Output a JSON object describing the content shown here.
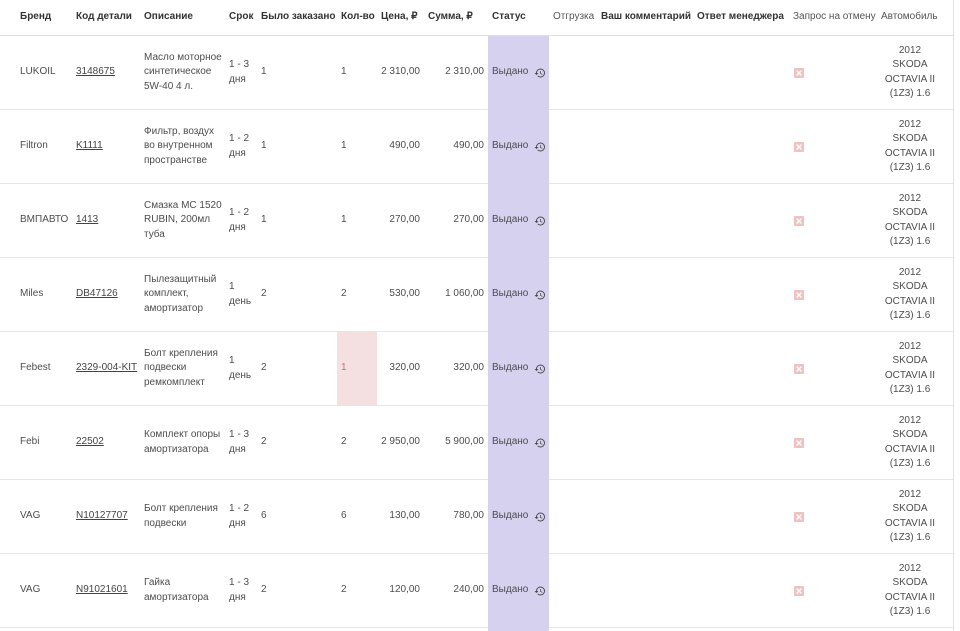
{
  "columns": {
    "brand": "Бренд",
    "part_code": "Код детали",
    "description": "Описание",
    "term": "Срок",
    "ordered": "Было заказано",
    "quantity": "Кол-во",
    "price": "Цена, ₽",
    "sum": "Сумма, ₽",
    "status": "Статус",
    "shipment": "Отгрузка",
    "your_comment": "Ваш комментарий",
    "manager_reply": "Ответ менеджера",
    "cancel_request": "Запрос на отмену",
    "car": "Автомобиль"
  },
  "rows": [
    {
      "brand": "LUKOIL",
      "code": "3148675",
      "description": "Масло моторное синтетическое 5W-40 4 л.",
      "term": "1 - 3 дня",
      "ordered": "1",
      "qty": "1",
      "price": "2 310,00",
      "sum": "2 310,00",
      "status": "Выдано",
      "car": "2012 SKODA OCTAVIA II (1Z3) 1.6"
    },
    {
      "brand": "Filtron",
      "code": "K1111",
      "description": "Фильтр, воздух во внутренном пространстве",
      "term": "1 - 2 дня",
      "ordered": "1",
      "qty": "1",
      "price": "490,00",
      "sum": "490,00",
      "status": "Выдано",
      "car": "2012 SKODA OCTAVIA II (1Z3) 1.6"
    },
    {
      "brand": "ВМПАВТО",
      "code": "1413",
      "description": "Смазка MC 1520 RUBIN, 200мл туба",
      "term": "1 - 2 дня",
      "ordered": "1",
      "qty": "1",
      "price": "270,00",
      "sum": "270,00",
      "status": "Выдано",
      "car": "2012 SKODA OCTAVIA II (1Z3) 1.6"
    },
    {
      "brand": "Miles",
      "code": "DB47126",
      "description": "Пылезащитный комплект, амортизатор",
      "term": "1 день",
      "ordered": "2",
      "qty": "2",
      "price": "530,00",
      "sum": "1 060,00",
      "status": "Выдано",
      "car": "2012 SKODA OCTAVIA II (1Z3) 1.6"
    },
    {
      "brand": "Febest",
      "code": "2329-004-KIT",
      "description": "Болт крепления подвески ремкомплект",
      "term": "1 день",
      "ordered": "2",
      "qty": "1",
      "qty_highlighted": true,
      "price": "320,00",
      "sum": "320,00",
      "status": "Выдано",
      "car": "2012 SKODA OCTAVIA II (1Z3) 1.6"
    },
    {
      "brand": "Febi",
      "code": "22502",
      "description": "Комплект опоры амортизатора",
      "term": "1 - 3 дня",
      "ordered": "2",
      "qty": "2",
      "price": "2 950,00",
      "sum": "5 900,00",
      "status": "Выдано",
      "car": "2012 SKODA OCTAVIA II (1Z3) 1.6"
    },
    {
      "brand": "VAG",
      "code": "N10127707",
      "description": "Болт крепления подвески",
      "term": "1 - 2 дня",
      "ordered": "6",
      "qty": "6",
      "price": "130,00",
      "sum": "780,00",
      "status": "Выдано",
      "car": "2012 SKODA OCTAVIA II (1Z3) 1.6"
    },
    {
      "brand": "VAG",
      "code": "N91021601",
      "description": "Гайка амортизатора",
      "term": "1 - 3 дня",
      "ordered": "2",
      "qty": "2",
      "price": "120,00",
      "sum": "240,00",
      "status": "Выдано",
      "car": "2012 SKODA OCTAVIA II (1Z3) 1.6"
    }
  ],
  "icons": {
    "status_history": "history-icon",
    "cancel_request": "cancel-icon"
  },
  "colors": {
    "status_column": "#d5d1ef",
    "qty_highlight": "#f4e0e0",
    "qty_highlight_text": "#c27476",
    "cancel_icon": "#efc1c1"
  }
}
